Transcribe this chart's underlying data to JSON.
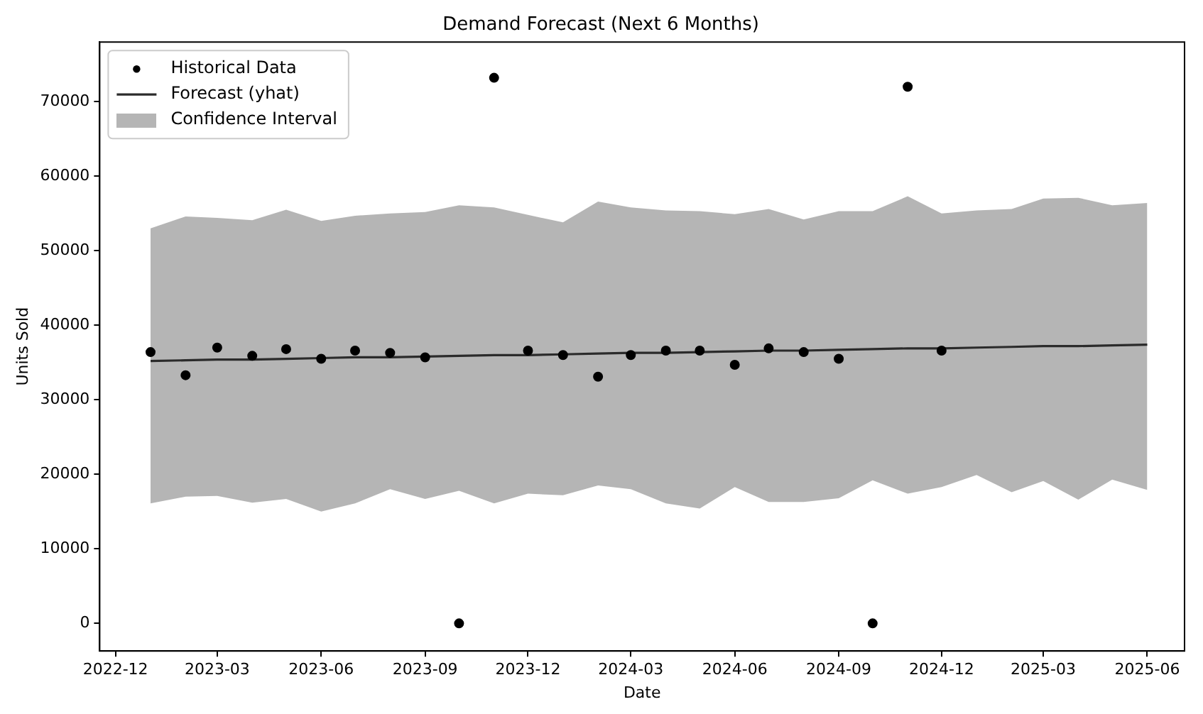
{
  "chart_data": {
    "type": "scatter",
    "title": "Demand Forecast (Next 6 Months)",
    "xlabel": "Date",
    "ylabel": "Units Sold",
    "xlim": [
      "2022-11-17",
      "2025-07-04"
    ],
    "xticks": [
      "2022-12",
      "2023-03",
      "2023-06",
      "2023-09",
      "2023-12",
      "2024-03",
      "2024-06",
      "2024-09",
      "2024-12",
      "2025-03",
      "2025-06"
    ],
    "ylim": [
      -3700,
      78000
    ],
    "yticks": [
      0,
      10000,
      20000,
      30000,
      40000,
      50000,
      60000,
      70000
    ],
    "grid": false,
    "legend": "top left",
    "annotations": [
      "Confidence Interval"
    ],
    "series": [
      {
        "name": "Historical Data",
        "type": "scatter",
        "marker": "circle",
        "color": "#000000",
        "x": [
          "2023-01",
          "2023-02",
          "2023-03",
          "2023-04",
          "2023-05",
          "2023-06",
          "2023-07",
          "2023-08",
          "2023-09",
          "2023-10",
          "2023-11",
          "2023-12",
          "2024-01",
          "2024-02",
          "2024-03",
          "2024-04",
          "2024-05",
          "2024-06",
          "2024-07",
          "2024-08",
          "2024-09",
          "2024-10",
          "2024-11",
          "2024-12"
        ],
        "values": [
          36400,
          33300,
          37000,
          35900,
          36800,
          35500,
          36600,
          36300,
          35700,
          0,
          73200,
          36600,
          36000,
          33100,
          36000,
          36600,
          36600,
          34700,
          36900,
          36400,
          35500,
          0,
          72000,
          36600
        ]
      },
      {
        "name": "Forecast (yhat)",
        "type": "line",
        "line_style": "solid",
        "color": "#2b2b2b",
        "x": [
          "2023-01",
          "2023-02",
          "2023-03",
          "2023-04",
          "2023-05",
          "2023-06",
          "2023-07",
          "2023-08",
          "2023-09",
          "2023-10",
          "2023-11",
          "2023-12",
          "2024-01",
          "2024-02",
          "2024-03",
          "2024-04",
          "2024-05",
          "2024-06",
          "2024-07",
          "2024-08",
          "2024-09",
          "2024-10",
          "2024-11",
          "2024-12",
          "2025-01",
          "2025-02",
          "2025-03",
          "2025-04",
          "2025-05",
          "2025-06"
        ],
        "values": [
          35200,
          35300,
          35400,
          35400,
          35500,
          35600,
          35700,
          35700,
          35800,
          35900,
          36000,
          36000,
          36100,
          36200,
          36300,
          36300,
          36400,
          36500,
          36600,
          36600,
          36700,
          36800,
          36900,
          36900,
          37000,
          37100,
          37200,
          37200,
          37300,
          37400
        ],
        "lower": [
          16100,
          17000,
          17100,
          16200,
          16700,
          15000,
          16100,
          18000,
          16700,
          17800,
          16100,
          17400,
          17200,
          18500,
          18000,
          16100,
          15400,
          18300,
          16300,
          16300,
          16800,
          19200,
          17400,
          18300,
          19900,
          17600,
          19100,
          16600,
          19300,
          17900
        ],
        "upper": [
          53000,
          54600,
          54400,
          54100,
          55500,
          54000,
          54700,
          55000,
          55200,
          56100,
          55800,
          54800,
          53800,
          56600,
          55800,
          55400,
          55300,
          54900,
          55600,
          54200,
          55300,
          55300,
          57300,
          55000,
          55400,
          55600,
          57000,
          57100,
          56100,
          56400
        ]
      }
    ]
  }
}
